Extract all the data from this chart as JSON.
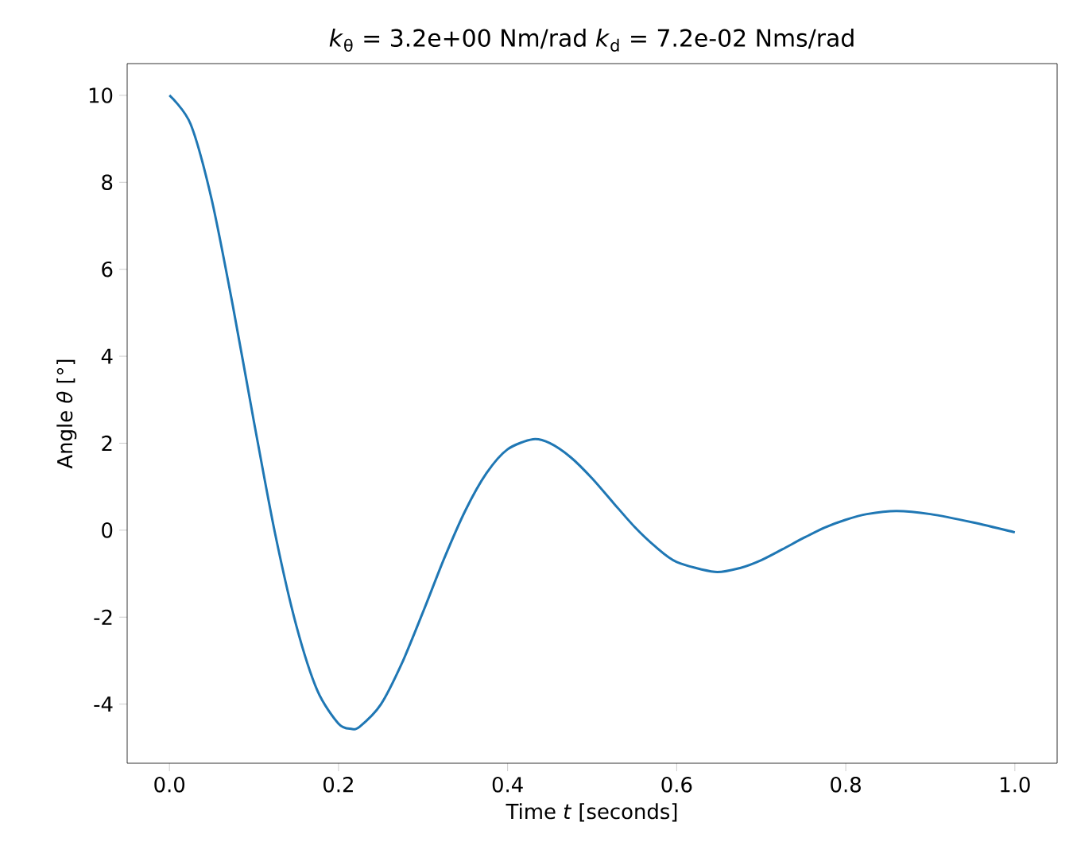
{
  "chart_data": {
    "type": "line",
    "title": "*k*$_{θ}$ = 3.2e+00 Nm/rad    *k*$_{d}$ = 7.2e-02 Nms/rad",
    "xlabel": "Time *t* [seconds]",
    "ylabel": "Angle *θ* [°]",
    "x": [
      0,
      0.025,
      0.05,
      0.075,
      0.1,
      0.125,
      0.15,
      0.175,
      0.2,
      0.215,
      0.225,
      0.25,
      0.275,
      0.3,
      0.325,
      0.35,
      0.375,
      0.4,
      0.43,
      0.45,
      0.475,
      0.5,
      0.525,
      0.55,
      0.575,
      0.6,
      0.645,
      0.675,
      0.7,
      0.725,
      0.75,
      0.775,
      0.8,
      0.825,
      0.86,
      0.9,
      0.95,
      1.0
    ],
    "series": [
      {
        "color": "#1f77b4",
        "values": [
          10,
          9.34,
          7.6,
          5.16,
          2.49,
          -0.08,
          -2.19,
          -3.69,
          -4.45,
          -4.57,
          -4.52,
          -4.01,
          -3.06,
          -1.88,
          -0.65,
          0.45,
          1.31,
          1.86,
          2.09,
          2.0,
          1.67,
          1.19,
          0.63,
          0.08,
          -0.38,
          -0.73,
          -0.96,
          -0.87,
          -0.69,
          -0.44,
          -0.18,
          0.06,
          0.24,
          0.37,
          0.44,
          0.37,
          0.18,
          -0.05
        ]
      }
    ],
    "xlim": [
      -0.05,
      1.05
    ],
    "ylim": [
      -5.36,
      10.73
    ],
    "xticks": [
      {
        "value": 0,
        "label": "0.0"
      },
      {
        "value": 0.2,
        "label": "0.2"
      },
      {
        "value": 0.4,
        "label": "0.4"
      },
      {
        "value": 0.6,
        "label": "0.6"
      },
      {
        "value": 0.8,
        "label": "0.8"
      },
      {
        "value": 1.0,
        "label": "1.0"
      }
    ],
    "yticks": [
      -4,
      -2,
      0,
      2,
      4,
      6,
      8,
      10
    ]
  }
}
